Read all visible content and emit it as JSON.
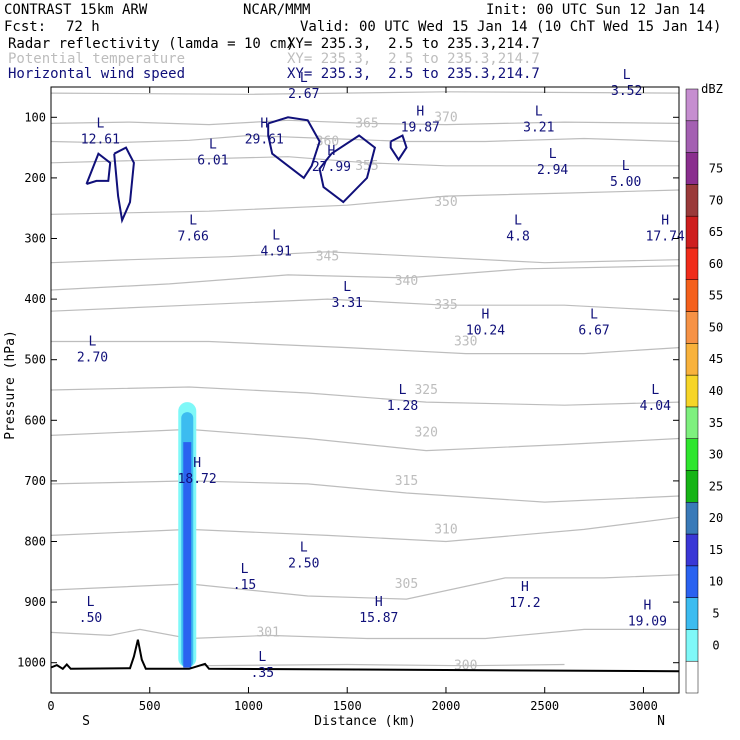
{
  "header": {
    "model": "CONTRAST 15km ARW",
    "org": "NCAR/MMM",
    "init": "Init: 00 UTC Sun 12 Jan 14",
    "fcst_label": "Fcst:",
    "fcst_value": "72 h",
    "valid": "Valid: 00 UTC Wed 15 Jan 14 (10 ChT Wed 15 Jan 14)"
  },
  "fields": [
    {
      "name": "Radar reflectivity (lamda = 10 cm)",
      "xy": "XY= 235.3,  2.5 to 235.3,214.7",
      "color": "#000000"
    },
    {
      "name": "Potential temperature",
      "xy": "XY= 235.3,  2.5 to 235.3,214.7",
      "color": "#bdbdbd"
    },
    {
      "name": "Horizontal wind speed",
      "xy": "XY= 235.3,  2.5 to 235.3,214.7",
      "color": "#10107a"
    }
  ],
  "colorbar": {
    "unit": "dBZ",
    "labels": [
      "0",
      "5",
      "10",
      "15",
      "20",
      "25",
      "30",
      "35",
      "40",
      "45",
      "50",
      "55",
      "60",
      "65",
      "70",
      "75"
    ],
    "colors": [
      "#ffffff",
      "#7ff8f8",
      "#3cbcf0",
      "#2a62f0",
      "#3a37d6",
      "#3a7ab8",
      "#16b416",
      "#2ee62e",
      "#7ef07e",
      "#f6d528",
      "#f8b23c",
      "#f69246",
      "#f4601c",
      "#f02c1a",
      "#ce1e1e",
      "#9a3a3a",
      "#8a2e8e",
      "#a460b2",
      "#c68ed0"
    ]
  },
  "chart_data": {
    "type": "cross-section",
    "xlabel": "Distance (km)",
    "ylabel": "Pressure (hPa)",
    "xlim": [
      0,
      3180
    ],
    "ylim": [
      1050,
      50
    ],
    "xticks": [
      0,
      500,
      1000,
      1500,
      2000,
      2500,
      3000
    ],
    "yticks": [
      100,
      200,
      300,
      400,
      500,
      600,
      700,
      800,
      900,
      1000
    ],
    "x_endpoints": {
      "left": "S",
      "right": "N"
    },
    "terrain": [
      [
        0,
        1008
      ],
      [
        30,
        1004
      ],
      [
        60,
        1010
      ],
      [
        80,
        1003
      ],
      [
        100,
        1010
      ],
      [
        400,
        1009
      ],
      [
        420,
        990
      ],
      [
        440,
        962
      ],
      [
        460,
        995
      ],
      [
        480,
        1010
      ],
      [
        700,
        1010
      ],
      [
        780,
        1002
      ],
      [
        800,
        1010
      ],
      [
        3180,
        1014
      ]
    ],
    "reflectivity_column": {
      "x": 690,
      "top": 570,
      "bottom": 1008,
      "max_dbz_band": "15-20"
    },
    "theta_contours": [
      {
        "label": "370",
        "p": 100,
        "points": [
          [
            0,
            60
          ],
          [
            1000,
            62
          ],
          [
            2000,
            58
          ],
          [
            3180,
            60
          ]
        ]
      },
      {
        "label": "365",
        "p": 110,
        "points": [
          [
            0,
            110
          ],
          [
            400,
            108
          ],
          [
            800,
            112
          ],
          [
            1200,
            105
          ],
          [
            1600,
            110
          ],
          [
            2000,
            112
          ],
          [
            2600,
            108
          ],
          [
            3180,
            110
          ]
        ]
      },
      {
        "label": "360",
        "p": 140,
        "points": [
          [
            0,
            140
          ],
          [
            300,
            142
          ],
          [
            700,
            138
          ],
          [
            1000,
            130
          ],
          [
            1400,
            135
          ],
          [
            1800,
            140
          ],
          [
            2200,
            140
          ],
          [
            2700,
            135
          ],
          [
            3180,
            140
          ]
        ]
      },
      {
        "label": "355",
        "p": 180,
        "points": [
          [
            0,
            175
          ],
          [
            600,
            170
          ],
          [
            1200,
            165
          ],
          [
            1600,
            175
          ],
          [
            2000,
            180
          ],
          [
            2500,
            180
          ],
          [
            3180,
            180
          ]
        ]
      },
      {
        "label": "350",
        "p": 240,
        "points": [
          [
            0,
            260
          ],
          [
            800,
            255
          ],
          [
            1500,
            245
          ],
          [
            2000,
            230
          ],
          [
            2600,
            225
          ],
          [
            3180,
            220
          ]
        ]
      },
      {
        "label": "345",
        "p": 330,
        "points": [
          [
            0,
            340
          ],
          [
            400,
            335
          ],
          [
            900,
            330
          ],
          [
            1400,
            322
          ],
          [
            1900,
            330
          ],
          [
            2500,
            340
          ],
          [
            3180,
            335
          ]
        ]
      },
      {
        "label": "340",
        "p": 370,
        "points": [
          [
            0,
            385
          ],
          [
            600,
            375
          ],
          [
            1200,
            360
          ],
          [
            1800,
            365
          ],
          [
            2400,
            350
          ],
          [
            3180,
            345
          ]
        ]
      },
      {
        "label": "335",
        "p": 410,
        "points": [
          [
            0,
            420
          ],
          [
            700,
            410
          ],
          [
            1400,
            400
          ],
          [
            2000,
            410
          ],
          [
            2600,
            410
          ],
          [
            3180,
            420
          ]
        ]
      },
      {
        "label": "330",
        "p": 470,
        "points": [
          [
            0,
            470
          ],
          [
            800,
            470
          ],
          [
            1500,
            480
          ],
          [
            2100,
            490
          ],
          [
            2700,
            490
          ],
          [
            3180,
            480
          ]
        ]
      },
      {
        "label": "325",
        "p": 550,
        "points": [
          [
            0,
            550
          ],
          [
            700,
            545
          ],
          [
            1300,
            555
          ],
          [
            1900,
            570
          ],
          [
            2600,
            575
          ],
          [
            3180,
            570
          ]
        ]
      },
      {
        "label": "320",
        "p": 620,
        "points": [
          [
            0,
            625
          ],
          [
            700,
            615
          ],
          [
            1300,
            630
          ],
          [
            1900,
            650
          ],
          [
            2600,
            640
          ],
          [
            3180,
            630
          ]
        ]
      },
      {
        "label": "315",
        "p": 700,
        "points": [
          [
            0,
            705
          ],
          [
            700,
            700
          ],
          [
            1300,
            705
          ],
          [
            1800,
            720
          ],
          [
            2500,
            735
          ],
          [
            3180,
            725
          ]
        ]
      },
      {
        "label": "310",
        "p": 780,
        "points": [
          [
            0,
            790
          ],
          [
            700,
            780
          ],
          [
            1400,
            790
          ],
          [
            2000,
            800
          ],
          [
            2700,
            780
          ],
          [
            3180,
            760
          ]
        ]
      },
      {
        "label": "305",
        "p": 870,
        "points": [
          [
            0,
            880
          ],
          [
            700,
            870
          ],
          [
            1300,
            890
          ],
          [
            1800,
            895
          ],
          [
            2300,
            860
          ],
          [
            2800,
            860
          ],
          [
            3180,
            855
          ]
        ]
      },
      {
        "label": "301",
        "p": 950,
        "points": [
          [
            0,
            950
          ],
          [
            300,
            955
          ],
          [
            450,
            945
          ],
          [
            700,
            960
          ],
          [
            1100,
            955
          ],
          [
            1600,
            960
          ],
          [
            2200,
            960
          ],
          [
            2700,
            945
          ],
          [
            3180,
            945
          ]
        ]
      },
      {
        "label": "300",
        "p": 1005,
        "points": [
          [
            750,
            1005
          ],
          [
            1500,
            1003
          ],
          [
            2100,
            1005
          ],
          [
            2600,
            1003
          ]
        ]
      }
    ],
    "wind_contours": [
      {
        "label": "",
        "points": [
          [
            1100,
            110
          ],
          [
            1200,
            100
          ],
          [
            1300,
            105
          ],
          [
            1360,
            140
          ],
          [
            1320,
            180
          ],
          [
            1280,
            200
          ],
          [
            1200,
            180
          ],
          [
            1120,
            160
          ],
          [
            1100,
            130
          ],
          [
            1100,
            110
          ]
        ]
      },
      {
        "label": "",
        "points": [
          [
            1420,
            160
          ],
          [
            1560,
            130
          ],
          [
            1640,
            150
          ],
          [
            1600,
            200
          ],
          [
            1480,
            240
          ],
          [
            1380,
            215
          ],
          [
            1360,
            185
          ],
          [
            1420,
            160
          ]
        ]
      },
      {
        "label": "",
        "points": [
          [
            180,
            210
          ],
          [
            240,
            160
          ],
          [
            300,
            175
          ],
          [
            290,
            205
          ],
          [
            230,
            205
          ],
          [
            180,
            210
          ]
        ]
      },
      {
        "label": "",
        "points": [
          [
            320,
            160
          ],
          [
            380,
            150
          ],
          [
            420,
            175
          ],
          [
            400,
            240
          ],
          [
            360,
            270
          ],
          [
            340,
            230
          ],
          [
            320,
            160
          ]
        ]
      },
      {
        "label": "",
        "points": [
          [
            1720,
            140
          ],
          [
            1780,
            130
          ],
          [
            1800,
            150
          ],
          [
            1760,
            170
          ],
          [
            1720,
            150
          ],
          [
            1720,
            140
          ]
        ]
      }
    ],
    "wind_extrema": [
      {
        "kind": "L",
        "value": "12.61",
        "x": 250,
        "p": 130
      },
      {
        "kind": "L",
        "value": "6.01",
        "x": 820,
        "p": 165
      },
      {
        "kind": "H",
        "value": "29.61",
        "x": 1080,
        "p": 130
      },
      {
        "kind": "L",
        "value": "2.67",
        "x": 1280,
        "p": 55
      },
      {
        "kind": "H",
        "value": "27.99",
        "x": 1420,
        "p": 175
      },
      {
        "kind": "H",
        "value": "19.87",
        "x": 1870,
        "p": 110
      },
      {
        "kind": "L",
        "value": "3.21",
        "x": 2470,
        "p": 110
      },
      {
        "kind": "L",
        "value": "3.52",
        "x": 2915,
        "p": 50
      },
      {
        "kind": "L",
        "value": "2.94",
        "x": 2540,
        "p": 180
      },
      {
        "kind": "L",
        "value": "5.00",
        "x": 2910,
        "p": 200
      },
      {
        "kind": "L",
        "value": "7.66",
        "x": 720,
        "p": 290
      },
      {
        "kind": "L",
        "value": "4.91",
        "x": 1140,
        "p": 315
      },
      {
        "kind": "L",
        "value": "4.8",
        "x": 2365,
        "p": 290
      },
      {
        "kind": "H",
        "value": "17.74",
        "x": 3110,
        "p": 290
      },
      {
        "kind": "L",
        "value": "3.31",
        "x": 1500,
        "p": 400
      },
      {
        "kind": "H",
        "value": "10.24",
        "x": 2200,
        "p": 445
      },
      {
        "kind": "L",
        "value": "6.67",
        "x": 2750,
        "p": 445
      },
      {
        "kind": "L",
        "value": "2.70",
        "x": 210,
        "p": 490
      },
      {
        "kind": "L",
        "value": "1.28",
        "x": 1780,
        "p": 570
      },
      {
        "kind": "L",
        "value": "4.04",
        "x": 3060,
        "p": 570
      },
      {
        "kind": "H",
        "value": "18.72",
        "x": 740,
        "p": 690
      },
      {
        "kind": "L",
        "value": "2.50",
        "x": 1280,
        "p": 830
      },
      {
        "kind": "L",
        "value": ".15",
        "x": 980,
        "p": 865
      },
      {
        "kind": "H",
        "value": "15.87",
        "x": 1660,
        "p": 920
      },
      {
        "kind": "H",
        "value": "17.2",
        "x": 2400,
        "p": 895
      },
      {
        "kind": "H",
        "value": "19.09",
        "x": 3020,
        "p": 925
      },
      {
        "kind": "L",
        "value": ".50",
        "x": 200,
        "p": 920
      },
      {
        "kind": "L",
        "value": ".35",
        "x": 1070,
        "p": 1010
      }
    ]
  }
}
